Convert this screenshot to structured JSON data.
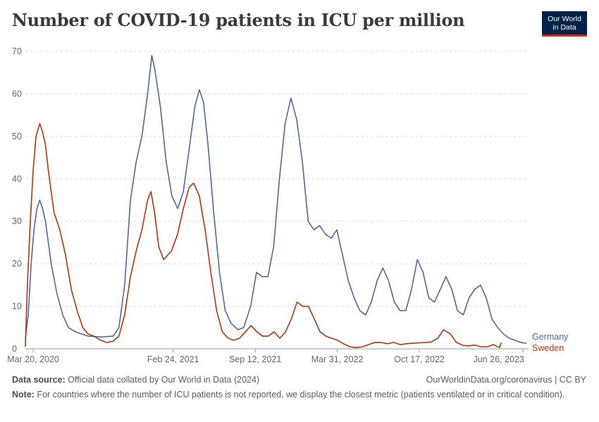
{
  "header": {
    "title": "Number of COVID-19 patients in ICU per million",
    "logo_line1": "Our World",
    "logo_line2": "in Data"
  },
  "footer": {
    "source_label": "Data source:",
    "source_text": "Official data collated by Our World in Data (2024)",
    "link_text": "OurWorldinData.org/coronavirus | CC BY",
    "note_label": "Note:",
    "note_text": "For countries where the number of ICU patients is not reported, we display the closest metric (patients ventilated or in critical condition)."
  },
  "chart_data": {
    "type": "line",
    "title": "Number of COVID-19 patients in ICU per million",
    "ylim": [
      0,
      70
    ],
    "yticks": [
      0,
      10,
      20,
      30,
      40,
      50,
      60,
      70
    ],
    "xlim": [
      "2020-03-01",
      "2023-07-10"
    ],
    "xticks": [
      {
        "date": "2020-03-20",
        "label": "Mar 20, 2020"
      },
      {
        "date": "2021-02-24",
        "label": "Feb 24, 2021"
      },
      {
        "date": "2021-09-12",
        "label": "Sep 12, 2021"
      },
      {
        "date": "2022-03-31",
        "label": "Mar 31, 2022"
      },
      {
        "date": "2022-10-17",
        "label": "Oct 17, 2022"
      },
      {
        "date": "2023-06-26",
        "label": "Jun 26, 2023"
      }
    ],
    "grid": true,
    "series": [
      {
        "name": "Germany",
        "color": "#4c6a9c",
        "points": [
          [
            "2020-03-01",
            2.5
          ],
          [
            "2020-03-08",
            8
          ],
          [
            "2020-03-15",
            20
          ],
          [
            "2020-03-22",
            28
          ],
          [
            "2020-03-29",
            33
          ],
          [
            "2020-04-05",
            35
          ],
          [
            "2020-04-12",
            33
          ],
          [
            "2020-04-19",
            30
          ],
          [
            "2020-04-26",
            25
          ],
          [
            "2020-05-03",
            20
          ],
          [
            "2020-05-17",
            13
          ],
          [
            "2020-05-31",
            8
          ],
          [
            "2020-06-14",
            5
          ],
          [
            "2020-07-01",
            4
          ],
          [
            "2020-08-01",
            3
          ],
          [
            "2020-09-01",
            2.8
          ],
          [
            "2020-10-01",
            3
          ],
          [
            "2020-10-15",
            5
          ],
          [
            "2020-10-29",
            15
          ],
          [
            "2020-11-12",
            35
          ],
          [
            "2020-11-26",
            44
          ],
          [
            "2020-12-10",
            50
          ],
          [
            "2020-12-24",
            60
          ],
          [
            "2021-01-03",
            69
          ],
          [
            "2021-01-10",
            66
          ],
          [
            "2021-01-24",
            57
          ],
          [
            "2021-02-07",
            44
          ],
          [
            "2021-02-21",
            36
          ],
          [
            "2021-03-07",
            33
          ],
          [
            "2021-03-21",
            37
          ],
          [
            "2021-04-04",
            47
          ],
          [
            "2021-04-18",
            57
          ],
          [
            "2021-04-29",
            61
          ],
          [
            "2021-05-09",
            58
          ],
          [
            "2021-05-20",
            48
          ],
          [
            "2021-06-03",
            32
          ],
          [
            "2021-06-17",
            18
          ],
          [
            "2021-07-01",
            9
          ],
          [
            "2021-07-15",
            6
          ],
          [
            "2021-08-01",
            4.5
          ],
          [
            "2021-08-15",
            5
          ],
          [
            "2021-09-01",
            10
          ],
          [
            "2021-09-15",
            18
          ],
          [
            "2021-09-29",
            17
          ],
          [
            "2021-10-13",
            17
          ],
          [
            "2021-10-27",
            24
          ],
          [
            "2021-11-10",
            40
          ],
          [
            "2021-11-24",
            53
          ],
          [
            "2021-12-08",
            59
          ],
          [
            "2021-12-22",
            54
          ],
          [
            "2022-01-05",
            44
          ],
          [
            "2022-01-19",
            30
          ],
          [
            "2022-02-02",
            28
          ],
          [
            "2022-02-16",
            29
          ],
          [
            "2022-03-02",
            27
          ],
          [
            "2022-03-16",
            26
          ],
          [
            "2022-03-30",
            28
          ],
          [
            "2022-04-13",
            22
          ],
          [
            "2022-04-27",
            16
          ],
          [
            "2022-05-11",
            12
          ],
          [
            "2022-05-25",
            9
          ],
          [
            "2022-06-08",
            8
          ],
          [
            "2022-06-22",
            11
          ],
          [
            "2022-07-06",
            16
          ],
          [
            "2022-07-20",
            19
          ],
          [
            "2022-08-03",
            16
          ],
          [
            "2022-08-17",
            11
          ],
          [
            "2022-08-31",
            9
          ],
          [
            "2022-09-14",
            9
          ],
          [
            "2022-09-28",
            14
          ],
          [
            "2022-10-12",
            21
          ],
          [
            "2022-10-26",
            18
          ],
          [
            "2022-11-09",
            12
          ],
          [
            "2022-11-23",
            11
          ],
          [
            "2022-12-07",
            14
          ],
          [
            "2022-12-21",
            17
          ],
          [
            "2023-01-04",
            14
          ],
          [
            "2023-01-18",
            9
          ],
          [
            "2023-02-01",
            8
          ],
          [
            "2023-02-15",
            12
          ],
          [
            "2023-03-01",
            14
          ],
          [
            "2023-03-15",
            15
          ],
          [
            "2023-03-29",
            12
          ],
          [
            "2023-04-12",
            7
          ],
          [
            "2023-04-26",
            5
          ],
          [
            "2023-05-10",
            3.5
          ],
          [
            "2023-05-24",
            2.5
          ],
          [
            "2023-06-07",
            2
          ],
          [
            "2023-06-21",
            1.5
          ],
          [
            "2023-07-05",
            1.3
          ]
        ]
      },
      {
        "name": "Sweden",
        "color": "#b13507",
        "points": [
          [
            "2020-03-01",
            0.5
          ],
          [
            "2020-03-06",
            15
          ],
          [
            "2020-03-13",
            30
          ],
          [
            "2020-03-20",
            42
          ],
          [
            "2020-03-27",
            50
          ],
          [
            "2020-04-05",
            53
          ],
          [
            "2020-04-12",
            51
          ],
          [
            "2020-04-19",
            48
          ],
          [
            "2020-04-26",
            42
          ],
          [
            "2020-05-03",
            37
          ],
          [
            "2020-05-10",
            32
          ],
          [
            "2020-05-24",
            28
          ],
          [
            "2020-06-07",
            22
          ],
          [
            "2020-06-21",
            14
          ],
          [
            "2020-07-05",
            9
          ],
          [
            "2020-07-19",
            5
          ],
          [
            "2020-08-01",
            3.5
          ],
          [
            "2020-08-15",
            3
          ],
          [
            "2020-09-01",
            2
          ],
          [
            "2020-09-15",
            1.5
          ],
          [
            "2020-10-01",
            1.8
          ],
          [
            "2020-10-15",
            3
          ],
          [
            "2020-10-29",
            8
          ],
          [
            "2020-11-12",
            17
          ],
          [
            "2020-11-26",
            23
          ],
          [
            "2020-12-10",
            28
          ],
          [
            "2020-12-24",
            35
          ],
          [
            "2021-01-01",
            37
          ],
          [
            "2021-01-10",
            32
          ],
          [
            "2021-01-20",
            24
          ],
          [
            "2021-02-01",
            21
          ],
          [
            "2021-02-10",
            22
          ],
          [
            "2021-02-20",
            23
          ],
          [
            "2021-03-07",
            27
          ],
          [
            "2021-03-21",
            33
          ],
          [
            "2021-04-04",
            38
          ],
          [
            "2021-04-15",
            39
          ],
          [
            "2021-04-29",
            36
          ],
          [
            "2021-05-13",
            28
          ],
          [
            "2021-05-27",
            18
          ],
          [
            "2021-06-10",
            9
          ],
          [
            "2021-06-24",
            4
          ],
          [
            "2021-07-08",
            2.5
          ],
          [
            "2021-07-22",
            2
          ],
          [
            "2021-08-05",
            2.5
          ],
          [
            "2021-08-19",
            4
          ],
          [
            "2021-09-02",
            5.5
          ],
          [
            "2021-09-16",
            4
          ],
          [
            "2021-09-30",
            3
          ],
          [
            "2021-10-14",
            3
          ],
          [
            "2021-10-28",
            4
          ],
          [
            "2021-11-11",
            2.5
          ],
          [
            "2021-11-25",
            4
          ],
          [
            "2021-12-09",
            7
          ],
          [
            "2021-12-23",
            11
          ],
          [
            "2022-01-06",
            10
          ],
          [
            "2022-01-20",
            10
          ],
          [
            "2022-02-03",
            7
          ],
          [
            "2022-02-17",
            4
          ],
          [
            "2022-03-03",
            3
          ],
          [
            "2022-03-17",
            2.5
          ],
          [
            "2022-04-01",
            2
          ],
          [
            "2022-04-15",
            1.2
          ],
          [
            "2022-05-01",
            0.5
          ],
          [
            "2022-05-15",
            0.3
          ],
          [
            "2022-06-01",
            0.5
          ],
          [
            "2022-06-15",
            1
          ],
          [
            "2022-07-01",
            1.5
          ],
          [
            "2022-07-15",
            1.5
          ],
          [
            "2022-08-01",
            1.2
          ],
          [
            "2022-08-15",
            1.5
          ],
          [
            "2022-09-01",
            1
          ],
          [
            "2022-09-15",
            1.2
          ],
          [
            "2022-10-01",
            1.3
          ],
          [
            "2022-10-15",
            1.4
          ],
          [
            "2022-11-01",
            1.5
          ],
          [
            "2022-11-15",
            1.6
          ],
          [
            "2022-12-01",
            2.5
          ],
          [
            "2022-12-15",
            4.5
          ],
          [
            "2023-01-01",
            3.5
          ],
          [
            "2023-01-15",
            1.5
          ],
          [
            "2023-02-01",
            0.8
          ],
          [
            "2023-02-15",
            0.7
          ],
          [
            "2023-03-01",
            0.9
          ],
          [
            "2023-03-15",
            0.5
          ],
          [
            "2023-04-01",
            0.5
          ],
          [
            "2023-04-15",
            1
          ],
          [
            "2023-04-30",
            0.3
          ],
          [
            "2023-05-05",
            1.5
          ]
        ]
      }
    ]
  }
}
